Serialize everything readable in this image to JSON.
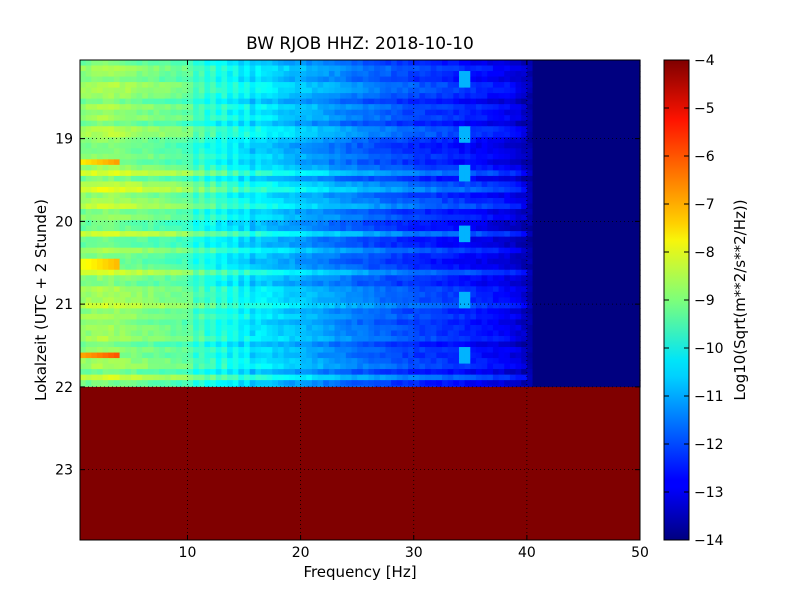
{
  "chart_data": {
    "type": "heatmap",
    "title": "BW RJOB HHZ: 2018-10-10",
    "xlabel": "Frequency [Hz]",
    "ylabel": "Lokalzeit (UTC + 2 Stunde)",
    "xlim": [
      0.5,
      50
    ],
    "ylim": [
      18.05,
      23.85
    ],
    "x_ticks": [
      10,
      20,
      30,
      40,
      50
    ],
    "y_ticks": [
      19,
      20,
      21,
      22,
      23
    ],
    "y_inverted": true,
    "grid": true,
    "colormap": "jet",
    "colorbar": {
      "label": "Log10(Sqrt(m**2/s**2/Hz))",
      "range": [
        -14,
        -4
      ],
      "ticks": [
        -4,
        -5,
        -6,
        -7,
        -8,
        -9,
        -10,
        -11,
        -12,
        -13,
        -14
      ]
    },
    "data_end_time": 22.0,
    "no_data_value": -4,
    "spectrum_profile": [
      {
        "freq": 0.5,
        "value": -9.0
      },
      {
        "freq": 3,
        "value": -8.8
      },
      {
        "freq": 6,
        "value": -9.1
      },
      {
        "freq": 10,
        "value": -9.4
      },
      {
        "freq": 14,
        "value": -10.1
      },
      {
        "freq": 18,
        "value": -10.8
      },
      {
        "freq": 22,
        "value": -11.3
      },
      {
        "freq": 26,
        "value": -11.8
      },
      {
        "freq": 30,
        "value": -12.2
      },
      {
        "freq": 34,
        "value": -12.5
      },
      {
        "freq": 37,
        "value": -12.8
      },
      {
        "freq": 39,
        "value": -13.1
      },
      {
        "freq": 41,
        "value": -13.9
      },
      {
        "freq": 50,
        "value": -14.0
      }
    ],
    "energy_bursts": [
      {
        "time": 19.25,
        "freq": 1.5,
        "value": -7.3
      },
      {
        "time": 20.48,
        "freq": 1.5,
        "value": -7.6
      },
      {
        "time": 21.6,
        "freq": 1.5,
        "value": -6.6
      }
    ],
    "narrowband_line": {
      "freq_range": [
        34,
        35
      ],
      "value": -11.0,
      "event_times": [
        18.25,
        18.9,
        19.4,
        20.15,
        20.9,
        21.6
      ]
    }
  }
}
